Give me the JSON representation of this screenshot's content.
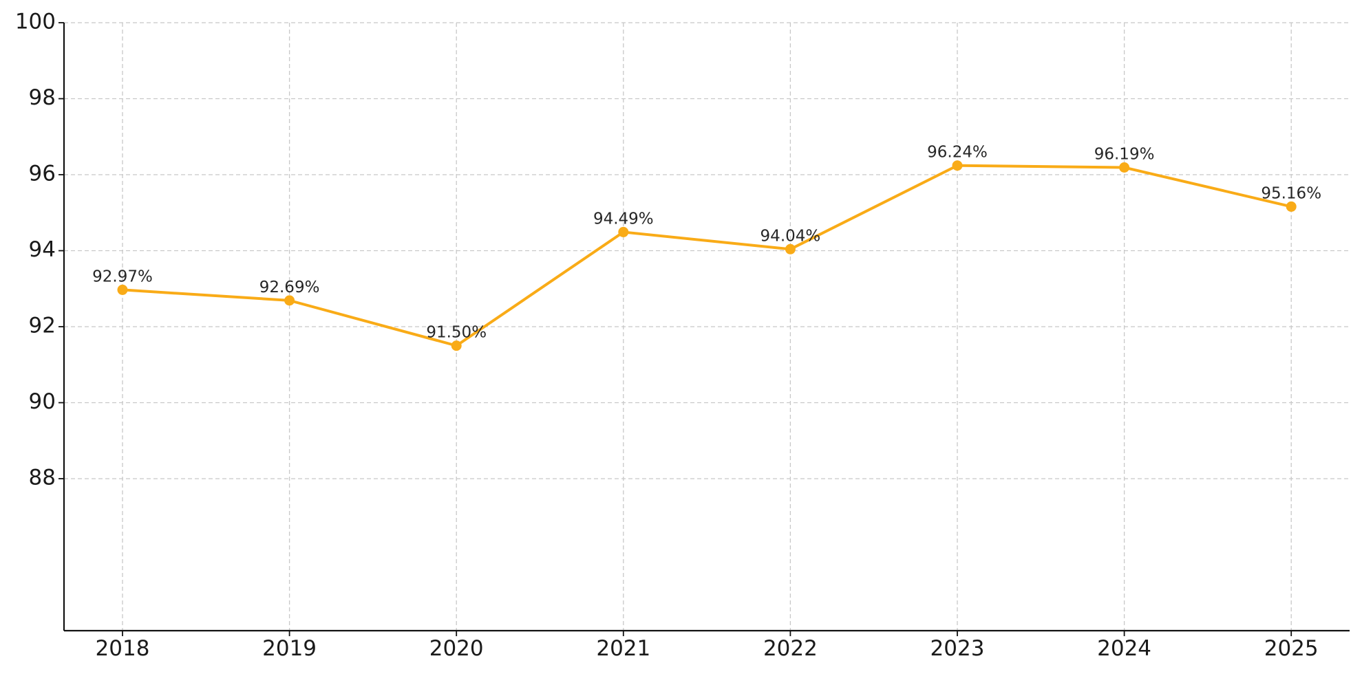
{
  "colors": {
    "series": "#f9ab17",
    "grid": "#c8c8c8",
    "axis": "#111111",
    "text": "#1a1a1a"
  },
  "chart_data": {
    "type": "line",
    "title": "",
    "xlabel": "",
    "ylabel": "",
    "categories": [
      "2018",
      "2019",
      "2020",
      "2021",
      "2022",
      "2023",
      "2024",
      "2025"
    ],
    "series": [
      {
        "values": [
          92.97,
          92.69,
          91.5,
          94.49,
          94.04,
          96.24,
          96.19,
          95.16
        ],
        "data_labels": [
          "92.97%",
          "92.69%",
          "91.50%",
          "94.49%",
          "94.04%",
          "96.24%",
          "96.19%",
          "95.16%"
        ],
        "color": "#f9ab17",
        "marker": "circle"
      }
    ],
    "ylim": [
      84,
      100
    ],
    "yticks": [
      88,
      90,
      92,
      94,
      96,
      98,
      100
    ],
    "grid": true,
    "legend": "none"
  }
}
